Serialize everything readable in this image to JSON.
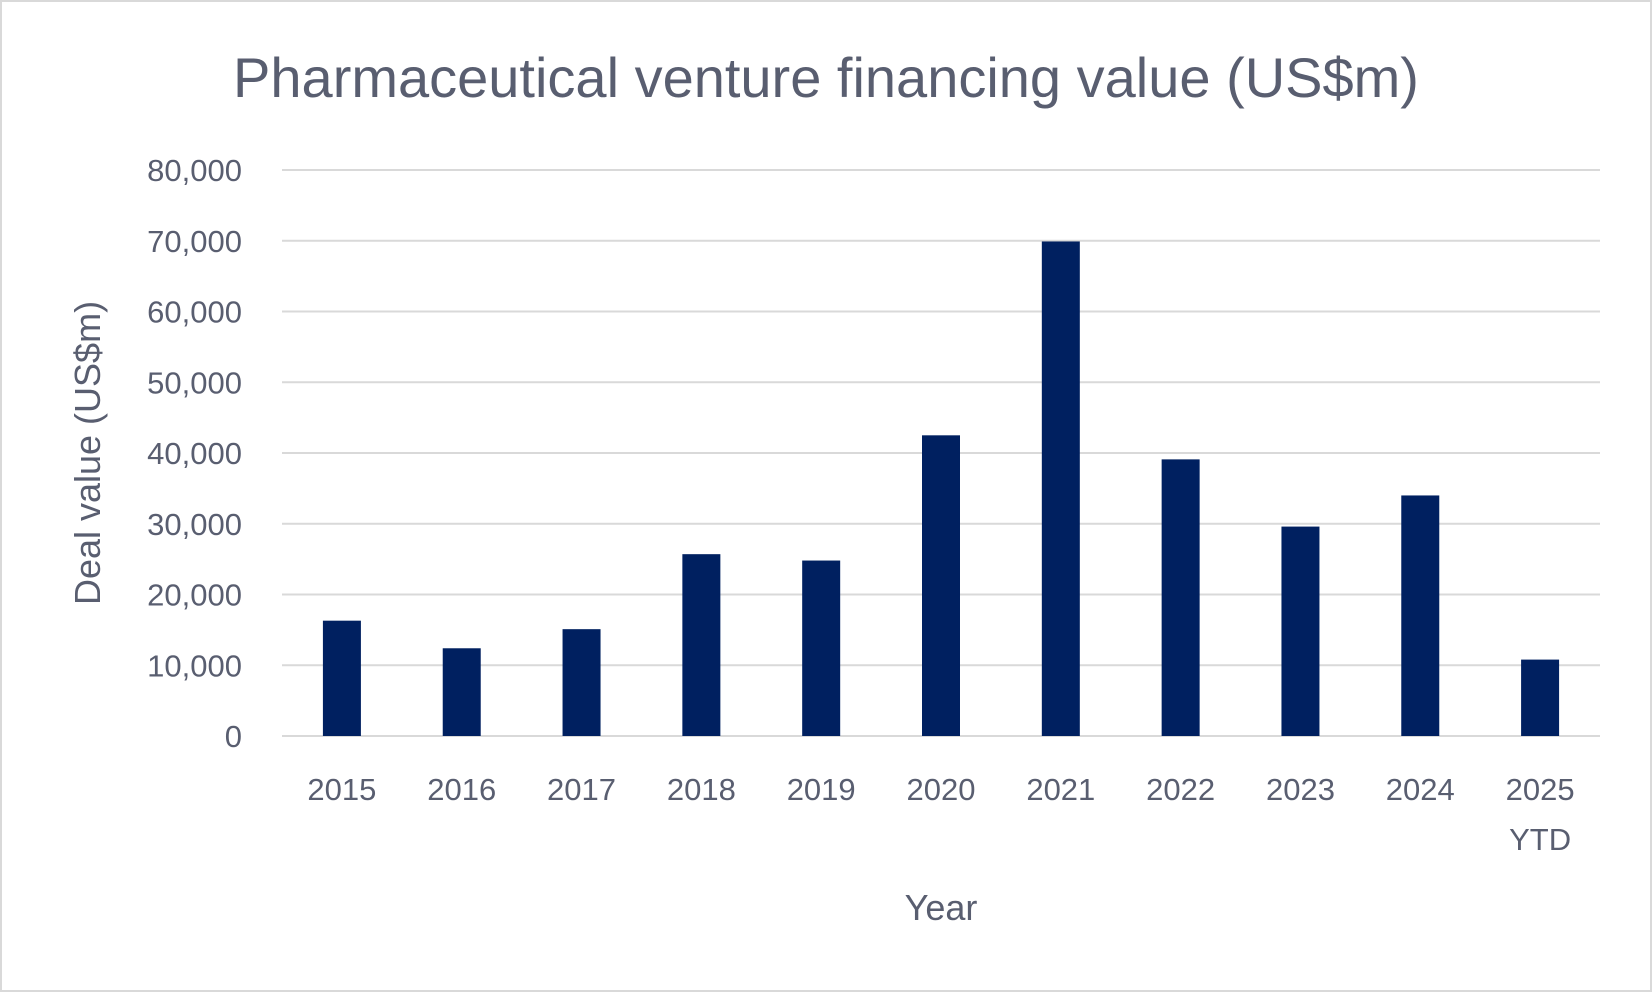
{
  "chart_data": {
    "type": "bar",
    "title": "Pharmaceutical venture financing value (US$m)",
    "xlabel": "Year",
    "ylabel": "Deal value (US$m)",
    "categories": [
      "2015",
      "2016",
      "2017",
      "2018",
      "2019",
      "2020",
      "2021",
      "2022",
      "2023",
      "2024",
      "2025 YTD"
    ],
    "values": [
      16300,
      12400,
      15100,
      25700,
      24800,
      42500,
      69900,
      39100,
      29600,
      34000,
      10800
    ],
    "ylim": [
      0,
      80000
    ],
    "yticks": [
      "0",
      "10,000",
      "20,000",
      "30,000",
      "40,000",
      "50,000",
      "60,000",
      "70,000",
      "80,000"
    ],
    "grid": true,
    "legend": "none",
    "colors": {
      "bar": "#002060",
      "grid": "#d9d9d9",
      "text": "#595e70"
    }
  }
}
